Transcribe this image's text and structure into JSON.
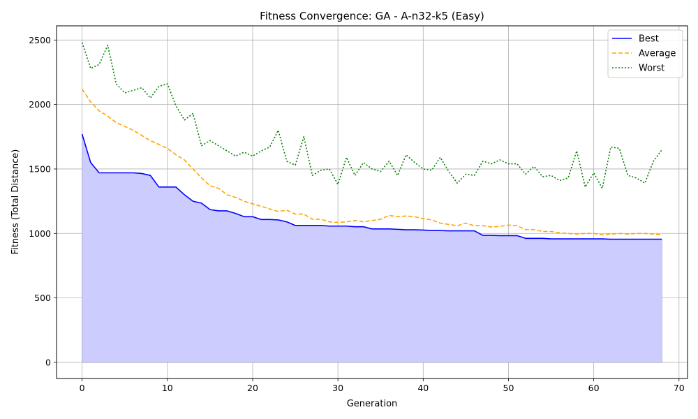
{
  "chart_data": {
    "type": "line",
    "title": "Fitness Convergence: GA - A-n32-k5 (Easy)",
    "xlabel": "Generation",
    "ylabel": "Fitness (Total Distance)",
    "xlim": [
      -3,
      71
    ],
    "ylim": [
      -125,
      2610
    ],
    "xticks": [
      0,
      10,
      20,
      30,
      40,
      50,
      60,
      70
    ],
    "yticks": [
      0,
      500,
      1000,
      1500,
      2000,
      2500
    ],
    "grid": true,
    "legend_position": "top-right",
    "series": [
      {
        "name": "Best",
        "style": "solid",
        "color": "#0000ff",
        "fill": "#ccccff",
        "values": [
          1770,
          1550,
          1470,
          1470,
          1470,
          1470,
          1470,
          1465,
          1450,
          1360,
          1360,
          1360,
          1300,
          1250,
          1235,
          1185,
          1175,
          1175,
          1155,
          1130,
          1130,
          1108,
          1108,
          1105,
          1090,
          1062,
          1062,
          1062,
          1062,
          1057,
          1057,
          1057,
          1052,
          1052,
          1035,
          1035,
          1035,
          1032,
          1028,
          1028,
          1026,
          1022,
          1022,
          1020,
          1020,
          1020,
          1020,
          985,
          985,
          983,
          983,
          983,
          962,
          962,
          962,
          958,
          958,
          958,
          958,
          958,
          958,
          958,
          955,
          955,
          955,
          955,
          955,
          955,
          955
        ]
      },
      {
        "name": "Average",
        "style": "dashed",
        "color": "#ffa500",
        "values": [
          2120,
          2020,
          1950,
          1910,
          1860,
          1830,
          1800,
          1760,
          1720,
          1690,
          1660,
          1610,
          1570,
          1500,
          1430,
          1370,
          1350,
          1300,
          1280,
          1250,
          1230,
          1210,
          1190,
          1170,
          1180,
          1150,
          1150,
          1110,
          1110,
          1090,
          1085,
          1090,
          1100,
          1090,
          1100,
          1110,
          1140,
          1130,
          1135,
          1130,
          1115,
          1105,
          1080,
          1070,
          1060,
          1080,
          1060,
          1060,
          1050,
          1055,
          1065,
          1060,
          1030,
          1030,
          1015,
          1015,
          1005,
          1000,
          995,
          1000,
          1000,
          990,
          995,
          1000,
          995,
          1000,
          1000,
          995,
          990
        ]
      },
      {
        "name": "Worst",
        "style": "dotted",
        "color": "#008000",
        "values": [
          2480,
          2280,
          2310,
          2460,
          2160,
          2090,
          2110,
          2130,
          2050,
          2140,
          2160,
          1990,
          1880,
          1930,
          1680,
          1720,
          1680,
          1640,
          1600,
          1630,
          1600,
          1640,
          1670,
          1800,
          1560,
          1530,
          1750,
          1450,
          1490,
          1500,
          1380,
          1590,
          1450,
          1550,
          1500,
          1480,
          1560,
          1450,
          1610,
          1550,
          1500,
          1490,
          1590,
          1480,
          1390,
          1460,
          1450,
          1560,
          1540,
          1570,
          1540,
          1540,
          1460,
          1520,
          1440,
          1450,
          1410,
          1430,
          1640,
          1360,
          1470,
          1350,
          1670,
          1660,
          1450,
          1430,
          1390,
          1560,
          1650
        ]
      }
    ]
  }
}
